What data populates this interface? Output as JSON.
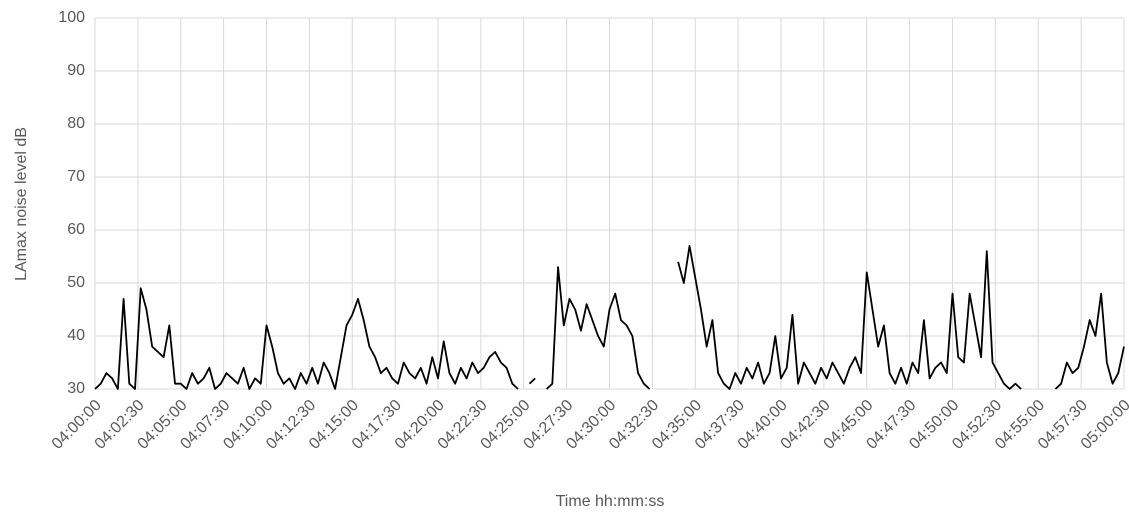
{
  "chart_data": {
    "type": "line",
    "y_label": "LAmax noise level dB",
    "x_label": "Time hh:mm:ss",
    "xlim": [
      0,
      3600
    ],
    "ylim": [
      30,
      100
    ],
    "yticks": [
      30,
      40,
      50,
      60,
      70,
      80,
      90,
      100
    ],
    "xticks": [
      {
        "value": 0,
        "label": "04:00:00"
      },
      {
        "value": 150,
        "label": "04:02:30"
      },
      {
        "value": 300,
        "label": "04:05:00"
      },
      {
        "value": 450,
        "label": "04:07:30"
      },
      {
        "value": 600,
        "label": "04:10:00"
      },
      {
        "value": 750,
        "label": "04:12:30"
      },
      {
        "value": 900,
        "label": "04:15:00"
      },
      {
        "value": 1050,
        "label": "04:17:30"
      },
      {
        "value": 1200,
        "label": "04:20:00"
      },
      {
        "value": 1350,
        "label": "04:22:30"
      },
      {
        "value": 1500,
        "label": "04:25:00"
      },
      {
        "value": 1650,
        "label": "04:27:30"
      },
      {
        "value": 1800,
        "label": "04:30:00"
      },
      {
        "value": 1950,
        "label": "04:32:30"
      },
      {
        "value": 2100,
        "label": "04:35:00"
      },
      {
        "value": 2250,
        "label": "04:37:30"
      },
      {
        "value": 2400,
        "label": "04:40:00"
      },
      {
        "value": 2550,
        "label": "04:42:30"
      },
      {
        "value": 2700,
        "label": "04:45:00"
      },
      {
        "value": 2850,
        "label": "04:47:30"
      },
      {
        "value": 3000,
        "label": "04:50:00"
      },
      {
        "value": 3150,
        "label": "04:52:30"
      },
      {
        "value": 3300,
        "label": "04:55:00"
      },
      {
        "value": 3450,
        "label": "04:57:30"
      },
      {
        "value": 3600,
        "label": "05:00:00"
      }
    ],
    "grid": true,
    "x": [
      0,
      20,
      40,
      60,
      80,
      100,
      120,
      140,
      160,
      180,
      200,
      220,
      240,
      260,
      280,
      300,
      320,
      340,
      360,
      380,
      400,
      420,
      440,
      460,
      480,
      500,
      520,
      540,
      560,
      580,
      600,
      620,
      640,
      660,
      680,
      700,
      720,
      740,
      760,
      780,
      800,
      820,
      840,
      860,
      880,
      900,
      920,
      940,
      960,
      980,
      1000,
      1020,
      1040,
      1060,
      1080,
      1100,
      1120,
      1140,
      1160,
      1180,
      1200,
      1220,
      1240,
      1260,
      1280,
      1300,
      1320,
      1340,
      1360,
      1380,
      1400,
      1420,
      1440,
      1460,
      1480,
      1500,
      1520,
      1540,
      1560,
      1580,
      1600,
      1620,
      1640,
      1660,
      1680,
      1700,
      1720,
      1740,
      1760,
      1780,
      1800,
      1820,
      1840,
      1860,
      1880,
      1900,
      1920,
      1940,
      1960,
      1980,
      2000,
      2020,
      2040,
      2060,
      2080,
      2100,
      2120,
      2140,
      2160,
      2180,
      2200,
      2220,
      2240,
      2260,
      2280,
      2300,
      2320,
      2340,
      2360,
      2380,
      2400,
      2420,
      2440,
      2460,
      2480,
      2500,
      2520,
      2540,
      2560,
      2580,
      2600,
      2620,
      2640,
      2660,
      2680,
      2700,
      2720,
      2740,
      2760,
      2780,
      2800,
      2820,
      2840,
      2860,
      2880,
      2900,
      2920,
      2940,
      2960,
      2980,
      3000,
      3020,
      3040,
      3060,
      3080,
      3100,
      3120,
      3140,
      3160,
      3180,
      3200,
      3220,
      3240,
      3260,
      3280,
      3300,
      3320,
      3340,
      3360,
      3380,
      3400,
      3420,
      3440,
      3460,
      3480,
      3500,
      3520,
      3540,
      3560,
      3580,
      3600
    ],
    "series": [
      {
        "color": "#000000",
        "values": [
          30,
          31,
          33,
          32,
          30,
          47,
          31,
          30,
          49,
          45,
          38,
          37,
          36,
          42,
          31,
          31,
          30,
          33,
          31,
          32,
          34,
          30,
          31,
          33,
          32,
          31,
          34,
          30,
          32,
          31,
          42,
          38,
          33,
          31,
          32,
          30,
          33,
          31,
          34,
          31,
          35,
          33,
          30,
          36,
          42,
          44,
          47,
          43,
          38,
          36,
          33,
          34,
          32,
          31,
          35,
          33,
          32,
          34,
          31,
          36,
          32,
          39,
          33,
          31,
          34,
          32,
          35,
          33,
          34,
          36,
          37,
          35,
          34,
          31,
          30,
          null,
          31,
          32,
          null,
          30,
          31,
          53,
          42,
          47,
          45,
          41,
          46,
          43,
          40,
          38,
          45,
          48,
          43,
          42,
          40,
          33,
          31,
          30,
          null,
          null,
          null,
          null,
          54,
          50,
          57,
          51,
          45,
          38,
          43,
          33,
          31,
          30,
          33,
          31,
          34,
          32,
          35,
          31,
          33,
          40,
          32,
          34,
          44,
          31,
          35,
          33,
          31,
          34,
          32,
          35,
          33,
          31,
          34,
          36,
          33,
          52,
          45,
          38,
          42,
          33,
          31,
          34,
          31,
          35,
          33,
          43,
          32,
          34,
          35,
          33,
          48,
          36,
          35,
          48,
          42,
          36,
          56,
          35,
          33,
          31,
          30,
          31,
          30,
          null,
          null,
          31,
          null,
          null,
          30,
          31,
          35,
          33,
          34,
          38,
          43,
          40,
          48,
          35,
          31,
          33,
          38
        ]
      }
    ]
  }
}
